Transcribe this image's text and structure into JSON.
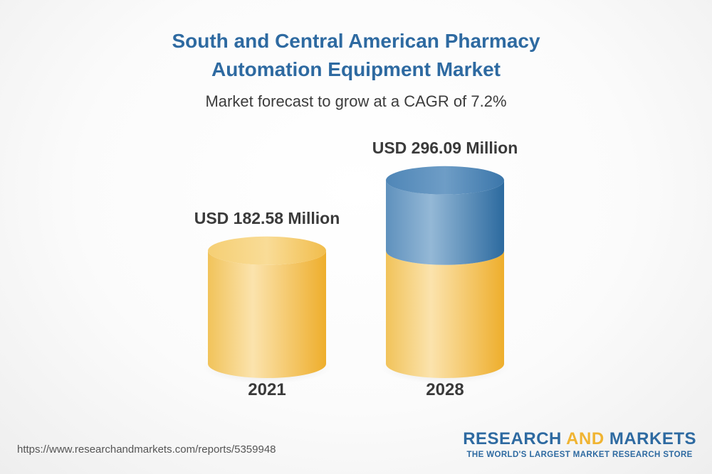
{
  "header": {
    "title_line1": "South and Central American Pharmacy",
    "title_line2": "Automation Equipment Market",
    "subtitle": "Market forecast to grow at a CAGR of 7.2%"
  },
  "colors": {
    "title": "#2e6aa1",
    "base_cylinder": "#f0b432",
    "growth_cylinder": "#2e6aa1",
    "text": "#3a3a3a"
  },
  "chart_data": {
    "type": "bar",
    "categories": [
      "2021",
      "2028"
    ],
    "values": [
      182.58,
      296.09
    ],
    "value_labels": [
      "USD 182.58 Million",
      "USD 296.09 Million"
    ],
    "unit": "USD Million",
    "title": "South and Central American Pharmacy Automation Equipment Market",
    "subtitle": "Market forecast to grow at a CAGR of 7.2%",
    "cagr_percent": 7.2,
    "style": "3d-cylinder",
    "grid": false
  },
  "footer": {
    "url": "https://www.researchandmarkets.com/reports/5359948",
    "brand_part1": "RESEARCH",
    "brand_part2": "AND",
    "brand_part3": "MARKETS",
    "brand_tagline": "THE WORLD'S LARGEST MARKET RESEARCH STORE"
  }
}
